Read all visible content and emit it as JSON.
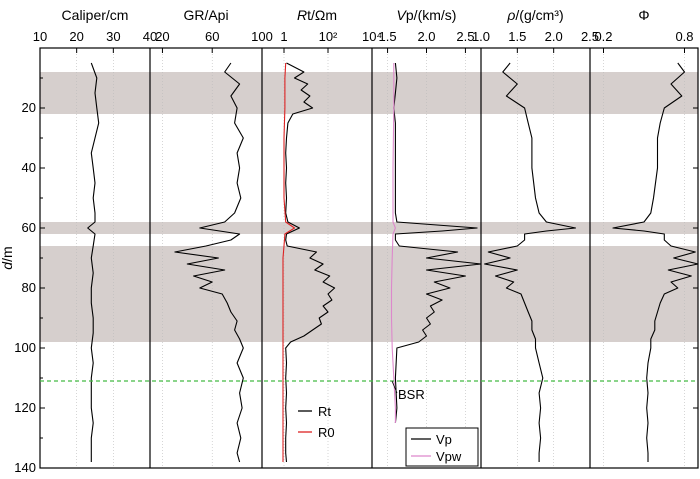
{
  "chart_data": {
    "type": "line",
    "y_axis": {
      "label_italic": "d",
      "label_rest": "/m",
      "range": [
        0,
        140
      ],
      "reversed": true,
      "ticks": [
        "20",
        "40",
        "60",
        "80",
        "100",
        "120",
        "140"
      ]
    },
    "shaded_intervals_m": [
      [
        8,
        22
      ],
      [
        58,
        62
      ],
      [
        66,
        98
      ]
    ],
    "bsr": {
      "depth": 111,
      "label": "BSR",
      "color": "#44bb44"
    },
    "panels": [
      {
        "id": "caliper",
        "title_parts": [
          {
            "t": "Caliper/cm",
            "i": false
          }
        ],
        "xlim": [
          10,
          40
        ],
        "scale": "linear",
        "ticks": [
          {
            "v": 10,
            "l": "10"
          },
          {
            "v": 20,
            "l": "20"
          },
          {
            "v": 30,
            "l": "30"
          },
          {
            "v": 40,
            "l": "40"
          }
        ],
        "series": [
          {
            "color": "#000000",
            "depth": [
              5,
              10,
              15,
              20,
              25,
              30,
              35,
              40,
              45,
              50,
              55,
              58,
              60,
              62,
              66,
              70,
              75,
              80,
              85,
              90,
              95,
              100,
              105,
              110,
              115,
              120,
              125,
              130,
              135,
              138
            ],
            "values": [
              24,
              25.5,
              25,
              25.5,
              26,
              25,
              24,
              24.5,
              25,
              24.5,
              25,
              25,
              23,
              25,
              24.5,
              24,
              24.5,
              24,
              24,
              24.5,
              24.5,
              24,
              24.5,
              24,
              24,
              24,
              24.5,
              24,
              24,
              24
            ]
          }
        ]
      },
      {
        "id": "gr",
        "title_parts": [
          {
            "t": "GR/Api",
            "i": false
          }
        ],
        "xlim": [
          10,
          100
        ],
        "scale": "linear",
        "ticks": [
          {
            "v": 20,
            "l": "20"
          },
          {
            "v": 60,
            "l": "60"
          },
          {
            "v": 100,
            "l": "100"
          }
        ],
        "series": [
          {
            "color": "#000000",
            "depth": [
              5,
              8,
              12,
              16,
              20,
              25,
              30,
              35,
              40,
              45,
              50,
              55,
              58,
              60,
              62,
              64,
              66,
              68,
              70,
              72,
              74,
              76,
              78,
              80,
              82,
              85,
              88,
              91,
              94,
              97,
              100,
              105,
              110,
              115,
              120,
              125,
              130,
              135,
              138
            ],
            "values": [
              75,
              70,
              82,
              75,
              80,
              78,
              85,
              80,
              82,
              80,
              83,
              78,
              70,
              50,
              82,
              75,
              55,
              30,
              65,
              40,
              70,
              45,
              60,
              50,
              68,
              72,
              75,
              80,
              78,
              82,
              85,
              80,
              85,
              82,
              84,
              80,
              83,
              80,
              82
            ]
          }
        ]
      },
      {
        "id": "rt",
        "title_parts": [
          {
            "t": "R",
            "i": true
          },
          {
            "t": "t/Ωm",
            "i": false
          }
        ],
        "xlim": [
          0.1,
          10000
        ],
        "scale": "log",
        "ticks": [
          {
            "v": 1,
            "l": "1"
          },
          {
            "v": 100,
            "l": "10²"
          },
          {
            "v": 10000,
            "l": "10⁴"
          }
        ],
        "legend": [
          {
            "label": "Rt",
            "color": "#000000"
          },
          {
            "label": "R0",
            "color": "#dd2222"
          }
        ],
        "series": [
          {
            "name": "Rt",
            "color": "#000000",
            "depth": [
              5,
              8,
              10,
              12,
              14,
              16,
              18,
              20,
              22,
              25,
              30,
              35,
              40,
              45,
              50,
              55,
              58,
              60,
              62,
              64,
              66,
              68,
              70,
              72,
              74,
              76,
              78,
              80,
              82,
              84,
              86,
              88,
              90,
              92,
              94,
              96,
              98,
              100,
              105,
              110,
              115,
              120,
              125,
              130,
              135,
              138
            ],
            "values": [
              1.3,
              8,
              3,
              12,
              6,
              15,
              8,
              20,
              2.5,
              1.5,
              1.3,
              1.2,
              1.3,
              1.2,
              1.3,
              1.2,
              1.5,
              5,
              1.3,
              1.2,
              1.4,
              30,
              15,
              60,
              25,
              120,
              60,
              200,
              100,
              150,
              60,
              100,
              40,
              50,
              20,
              8,
              2,
              1.2,
              1.3,
              1.2,
              1.3,
              1.2,
              1.3,
              1.2,
              1.2,
              1.3
            ]
          },
          {
            "name": "R0",
            "color": "#dd2222",
            "depth": [
              5,
              10,
              20,
              30,
              40,
              50,
              58,
              60,
              62,
              66,
              70,
              80,
              90,
              100,
              110,
              120,
              130,
              138
            ],
            "values": [
              1.2,
              1.1,
              1.1,
              1.0,
              1.0,
              1.0,
              1.2,
              3,
              1.1,
              1.0,
              0.9,
              0.9,
              0.9,
              0.9,
              0.9,
              0.9,
              0.9,
              0.9
            ]
          }
        ]
      },
      {
        "id": "vp",
        "title_parts": [
          {
            "t": "V",
            "i": true
          },
          {
            "t": "p/(km/s)",
            "i": false
          }
        ],
        "xlim": [
          1.3,
          2.7
        ],
        "scale": "linear",
        "ticks": [
          {
            "v": 1.5,
            "l": "1.5"
          },
          {
            "v": 2.0,
            "l": "2.0"
          },
          {
            "v": 2.5,
            "l": "2.5"
          }
        ],
        "legend": [
          {
            "label": "Vp",
            "color": "#000000"
          },
          {
            "label": "Vpw",
            "color": "#dd88cc"
          }
        ],
        "series": [
          {
            "name": "Vp",
            "color": "#000000",
            "depth": [
              5,
              10,
              15,
              20,
              25,
              30,
              40,
              50,
              55,
              58,
              60,
              61,
              62,
              64,
              66,
              68,
              70,
              72,
              74,
              76,
              78,
              80,
              82,
              84,
              86,
              88,
              90,
              92,
              94,
              96,
              98,
              100,
              110,
              120,
              125
            ],
            "values": [
              1.6,
              1.62,
              1.6,
              1.58,
              1.6,
              1.6,
              1.6,
              1.6,
              1.6,
              1.62,
              2.65,
              2.2,
              1.6,
              1.6,
              1.65,
              2.4,
              2.0,
              2.7,
              2.0,
              2.5,
              2.1,
              2.3,
              2.0,
              2.2,
              2.05,
              2.1,
              2.0,
              2.05,
              1.95,
              2.0,
              1.9,
              1.62,
              1.6,
              1.62,
              1.6
            ]
          },
          {
            "name": "Vpw",
            "color": "#dd88cc",
            "depth": [
              5,
              20,
              40,
              58,
              60,
              62,
              70,
              80,
              90,
              100,
              110,
              120,
              125
            ],
            "values": [
              1.58,
              1.58,
              1.57,
              1.57,
              1.6,
              1.57,
              1.56,
              1.55,
              1.55,
              1.56,
              1.58,
              1.6,
              1.6
            ]
          }
        ]
      },
      {
        "id": "rho",
        "title_parts": [
          {
            "t": "ρ",
            "i": true
          },
          {
            "t": "/(g/cm³)",
            "i": false
          }
        ],
        "xlim": [
          1.0,
          2.5
        ],
        "scale": "linear",
        "ticks": [
          {
            "v": 1.0,
            "l": "1.0"
          },
          {
            "v": 1.5,
            "l": "1.5"
          },
          {
            "v": 2.0,
            "l": "2.0"
          },
          {
            "v": 2.5,
            "l": "2.5"
          }
        ],
        "series": [
          {
            "color": "#000000",
            "depth": [
              5,
              8,
              12,
              16,
              20,
              25,
              30,
              40,
              50,
              55,
              58,
              60,
              61,
              62,
              64,
              66,
              68,
              70,
              72,
              74,
              76,
              78,
              80,
              82,
              85,
              88,
              91,
              94,
              97,
              100,
              105,
              110,
              115,
              120,
              125,
              130,
              135,
              138
            ],
            "values": [
              1.4,
              1.3,
              1.5,
              1.35,
              1.6,
              1.65,
              1.7,
              1.7,
              1.75,
              1.8,
              1.9,
              2.3,
              1.9,
              1.6,
              1.6,
              1.5,
              1.1,
              1.4,
              1.05,
              1.5,
              1.2,
              1.45,
              1.35,
              1.55,
              1.6,
              1.65,
              1.7,
              1.7,
              1.75,
              1.75,
              1.8,
              1.85,
              1.8,
              1.82,
              1.8,
              1.82,
              1.8,
              1.8
            ]
          }
        ]
      },
      {
        "id": "phi",
        "title_parts": [
          {
            "t": "Φ",
            "i": false
          }
        ],
        "xlim": [
          0.1,
          0.9
        ],
        "scale": "linear",
        "ticks": [
          {
            "v": 0.2,
            "l": "0.2"
          },
          {
            "v": 0.8,
            "l": "0.8"
          }
        ],
        "series": [
          {
            "color": "#000000",
            "depth": [
              5,
              8,
              12,
              16,
              20,
              25,
              30,
              40,
              50,
              55,
              58,
              60,
              61,
              62,
              64,
              66,
              68,
              70,
              72,
              74,
              76,
              78,
              80,
              82,
              85,
              88,
              91,
              94,
              97,
              100,
              105,
              110,
              115,
              120,
              125,
              130,
              135,
              138
            ],
            "values": [
              0.75,
              0.8,
              0.7,
              0.78,
              0.65,
              0.62,
              0.6,
              0.6,
              0.57,
              0.55,
              0.5,
              0.27,
              0.5,
              0.65,
              0.65,
              0.7,
              0.88,
              0.72,
              0.9,
              0.68,
              0.85,
              0.7,
              0.75,
              0.65,
              0.62,
              0.6,
              0.58,
              0.58,
              0.55,
              0.55,
              0.53,
              0.52,
              0.53,
              0.52,
              0.53,
              0.52,
              0.53,
              0.53
            ]
          }
        ]
      }
    ]
  }
}
